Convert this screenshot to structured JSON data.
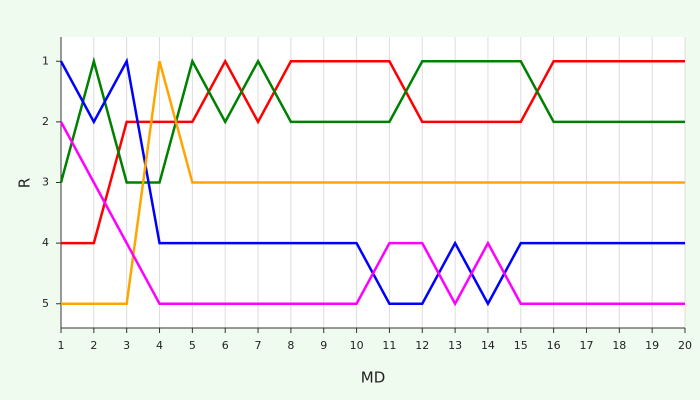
{
  "chart_data": {
    "type": "line",
    "x_label": "MD",
    "y_label": "R",
    "x": [
      1,
      2,
      3,
      4,
      5,
      6,
      7,
      8,
      9,
      10,
      11,
      12,
      13,
      14,
      15,
      16,
      17,
      18,
      19,
      20
    ],
    "series": [
      {
        "color": "#ff0000",
        "values": [
          4,
          4,
          2,
          2,
          2,
          1,
          2,
          1,
          1,
          1,
          1,
          2,
          2,
          2,
          2,
          1,
          1,
          1,
          1,
          1
        ]
      },
      {
        "color": "#008000",
        "values": [
          3,
          1,
          3,
          3,
          1,
          2,
          1,
          2,
          2,
          2,
          2,
          1,
          1,
          1,
          1,
          2,
          2,
          2,
          2,
          2
        ]
      },
      {
        "color": "#0000ff",
        "values": [
          1,
          2,
          1,
          4,
          4,
          4,
          4,
          4,
          4,
          4,
          5,
          5,
          4,
          5,
          4,
          4,
          4,
          4,
          4,
          4
        ]
      },
      {
        "color": "#ffa500",
        "values": [
          5,
          5,
          5,
          1,
          3,
          3,
          3,
          3,
          3,
          3,
          3,
          3,
          3,
          3,
          3,
          3,
          3,
          3,
          3,
          3
        ]
      },
      {
        "color": "#ff00ff",
        "values": [
          2,
          3,
          4,
          5,
          5,
          5,
          5,
          5,
          5,
          5,
          4,
          4,
          5,
          4,
          5,
          5,
          5,
          5,
          5,
          5
        ]
      }
    ],
    "xlim": [
      1,
      20
    ],
    "xticks": [
      1,
      2,
      3,
      4,
      5,
      6,
      7,
      8,
      9,
      10,
      11,
      12,
      13,
      14,
      15,
      16,
      17,
      18,
      19,
      20
    ],
    "ylim": [
      5.4,
      0.6
    ],
    "yticks": [
      1,
      2,
      3,
      4,
      5
    ],
    "grid": "x"
  }
}
